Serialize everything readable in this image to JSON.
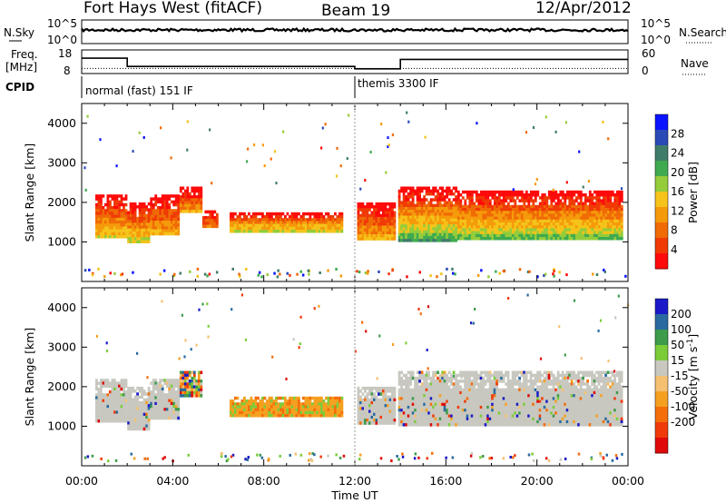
{
  "header": {
    "station": "Fort Hays West (fitACF)",
    "beam": "Beam 19",
    "date": "12/Apr/2012"
  },
  "noise_panel": {
    "left_label": "N.Sky",
    "right_label": "N.Search",
    "tick_top": "10^5",
    "tick_bottom": "10^0"
  },
  "freq_panel": {
    "left_label_line1": "Freq.",
    "left_label_line2": "[MHz]",
    "right_label": "Nave",
    "left_ticks": [
      "18",
      "8"
    ],
    "right_ticks": [
      "60",
      "0"
    ],
    "freq_mhz_steps": [
      {
        "start_h": 0.0,
        "end_h": 2.0,
        "freq": 14.5
      },
      {
        "start_h": 2.0,
        "end_h": 12.0,
        "freq": 11.0
      },
      {
        "start_h": 12.0,
        "end_h": 14.0,
        "freq": 10.0
      },
      {
        "start_h": 14.0,
        "end_h": 24.0,
        "freq": 14.0
      }
    ],
    "nave_level": 13
  },
  "cpid": {
    "label": "CPID",
    "modes": [
      {
        "start_h": 0.0,
        "name": "normal (fast) 151 IF"
      },
      {
        "start_h": 12.0,
        "name": "themis 3300 IF"
      }
    ]
  },
  "chart_data": [
    {
      "type": "heatmap",
      "panel": "power",
      "ylabel": "Slant Range [km]",
      "xlabel": "Time UT",
      "xlim": [
        0,
        24
      ],
      "ylim": [
        0,
        4500
      ],
      "y_ticks": [
        1000,
        2000,
        3000,
        4000
      ],
      "x_tick_labels": [
        "00:00",
        "04:00",
        "08:00",
        "12:00",
        "16:00",
        "20:00",
        "00:00"
      ],
      "colorbar": {
        "label": "Power [dB]",
        "ticks": [
          "4",
          "8",
          "12",
          "16",
          "20",
          "24",
          "28"
        ],
        "colors": [
          "#0a14ff",
          "#2a4ab8",
          "#3f7d6a",
          "#3faa4f",
          "#95cc3a",
          "#f5c31a",
          "#f59a0a",
          "#f06a06",
          "#f03a05",
          "#ff0a0a"
        ]
      },
      "bands": [
        {
          "start_h": 0.6,
          "end_h": 2.0,
          "low_km": 1100,
          "high_km": 2200,
          "peak": 16
        },
        {
          "start_h": 2.0,
          "end_h": 3.0,
          "low_km": 1000,
          "high_km": 2000,
          "peak": 18
        },
        {
          "start_h": 3.0,
          "end_h": 4.3,
          "low_km": 1200,
          "high_km": 2200,
          "peak": 14
        },
        {
          "start_h": 4.3,
          "end_h": 5.3,
          "low_km": 1800,
          "high_km": 2400,
          "peak": 12
        },
        {
          "start_h": 5.3,
          "end_h": 6.0,
          "low_km": 1400,
          "high_km": 1800,
          "peak": 10
        },
        {
          "start_h": 6.5,
          "end_h": 11.5,
          "low_km": 1300,
          "high_km": 1750,
          "peak": 18
        },
        {
          "start_h": 12.1,
          "end_h": 13.8,
          "low_km": 1100,
          "high_km": 2000,
          "peak": 14
        },
        {
          "start_h": 13.9,
          "end_h": 16.5,
          "low_km": 1050,
          "high_km": 2400,
          "peak": 22
        },
        {
          "start_h": 16.5,
          "end_h": 23.8,
          "low_km": 1100,
          "high_km": 2300,
          "peak": 20
        }
      ]
    },
    {
      "type": "heatmap",
      "panel": "velocity",
      "ylabel": "Slant Range [km]",
      "xlabel": "Time UT",
      "xlim": [
        0,
        24
      ],
      "ylim": [
        0,
        4500
      ],
      "y_ticks": [
        1000,
        2000,
        3000,
        4000
      ],
      "x_tick_labels": [
        "00:00",
        "04:00",
        "08:00",
        "12:00",
        "16:00",
        "20:00",
        "00:00"
      ],
      "colorbar": {
        "label": "Velocity [m s",
        "label_sup": "-1",
        "label_end": "]",
        "ticks": [
          "200",
          "100",
          "50",
          "15",
          "-15",
          "-50",
          "-100",
          "-200"
        ],
        "colors": [
          "#1a1ac8",
          "#2a6aa0",
          "#3c9c4a",
          "#7ccc3a",
          "#c8c8c0",
          "#f5c070",
          "#f5a020",
          "#f56e0a",
          "#f03a0a",
          "#e00a0a"
        ]
      },
      "bands": [
        {
          "start_h": 0.6,
          "end_h": 2.0,
          "low_km": 1100,
          "high_km": 2200,
          "kind": "gray"
        },
        {
          "start_h": 2.0,
          "end_h": 3.0,
          "low_km": 950,
          "high_km": 2000,
          "kind": "gray"
        },
        {
          "start_h": 3.0,
          "end_h": 4.3,
          "low_km": 1200,
          "high_km": 2200,
          "kind": "gray"
        },
        {
          "start_h": 4.3,
          "end_h": 5.3,
          "low_km": 1800,
          "high_km": 2400,
          "kind": "mixed"
        },
        {
          "start_h": 6.5,
          "end_h": 11.5,
          "low_km": 1300,
          "high_km": 1750,
          "kind": "orange"
        },
        {
          "start_h": 12.1,
          "end_h": 13.8,
          "low_km": 1100,
          "high_km": 2000,
          "kind": "gray"
        },
        {
          "start_h": 13.9,
          "end_h": 23.8,
          "low_km": 1050,
          "high_km": 2400,
          "kind": "gray"
        }
      ]
    }
  ]
}
